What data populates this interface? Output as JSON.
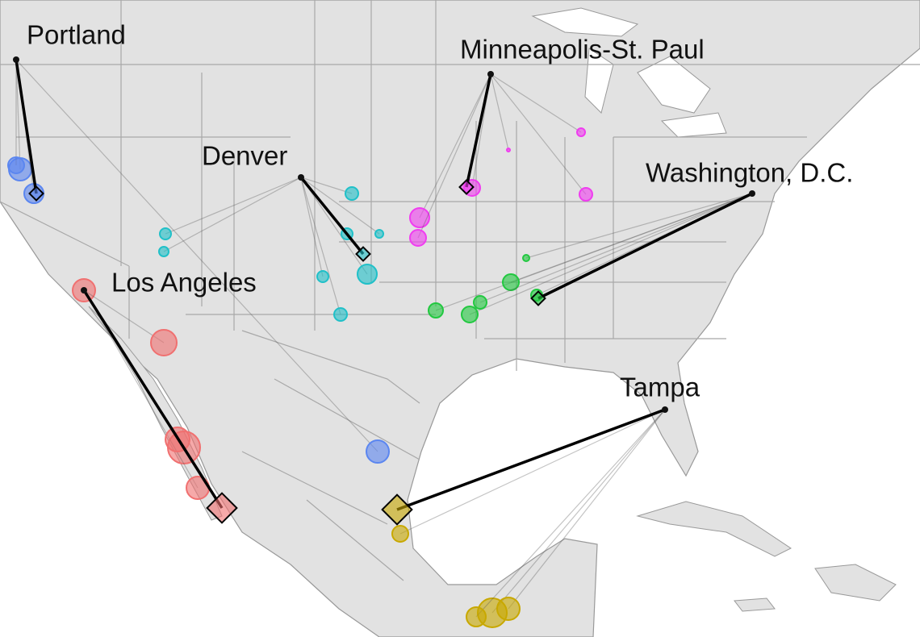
{
  "map": {
    "cities": [
      {
        "label": "Portland"
      },
      {
        "label": "Minneapolis-St. Paul"
      },
      {
        "label": "Denver"
      },
      {
        "label": "Washington, D.C."
      },
      {
        "label": "Los Angeles"
      },
      {
        "label": "Tampa"
      }
    ]
  }
}
